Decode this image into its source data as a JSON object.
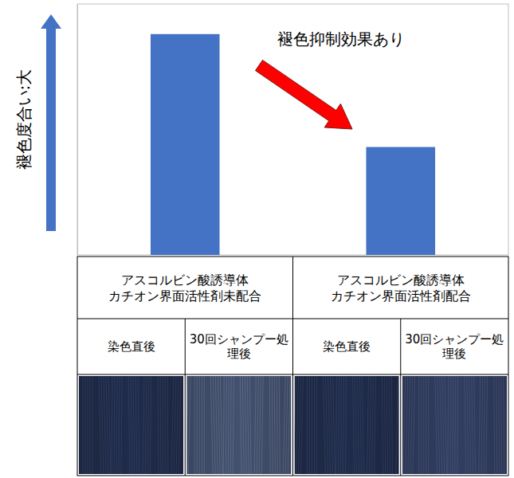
{
  "chart_data": {
    "type": "bar",
    "ylabel": "褪色度合い:大",
    "annotation": "褪色抑制効果あり",
    "categories": [
      "アスコルビン酸誘導体\nカチオン界面活性剤未配合",
      "アスコルビン酸誘導体\nカチオン界面活性剤配合"
    ],
    "subcategories": [
      "染色直後",
      "30回シャンプー処理後"
    ],
    "values": [
      88,
      43
    ],
    "color": "#4472c4",
    "ylim": [
      0,
      100
    ],
    "tick_labels": false,
    "grid": false
  }
}
